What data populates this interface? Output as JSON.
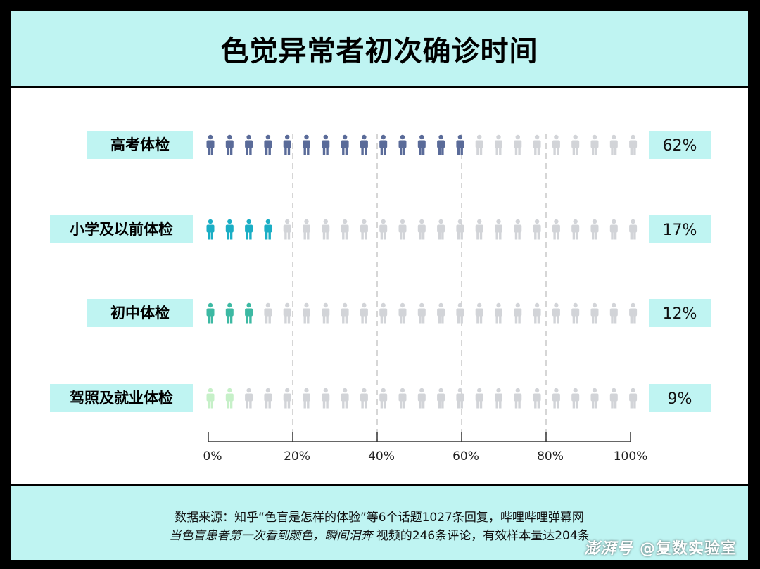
{
  "title": "色觉异常者初次确诊时间",
  "chart_data": {
    "type": "bar",
    "title": "色觉异常者初次确诊时间",
    "categories": [
      "高考体检",
      "小学及以前体检",
      "初中体检",
      "驾照及就业体检"
    ],
    "values": [
      62,
      17,
      12,
      9
    ],
    "value_labels": [
      "62%",
      "17%",
      "12%",
      "9%"
    ],
    "colors": [
      "#5a6b99",
      "#1aaec5",
      "#3db9a3",
      "#c6f0c8"
    ],
    "inactive_color": "#d2d4d8",
    "icons_per_row": 23,
    "x_ticks": [
      "0%",
      "20%",
      "40%",
      "60%",
      "80%",
      "100%"
    ],
    "xlim": [
      0,
      100
    ],
    "grid": "dashed-vertical"
  },
  "source": {
    "line1": "数据来源：知乎“色盲是怎样的体验”等6个话题1027条回复，哔哩哔哩弹幕网",
    "line2_em": "当色盲患者第一次看到颜色，瞬间泪奔",
    "line2_rest": " 视频的246条评论，有效样本量达204条"
  },
  "watermark": {
    "brand": "澎湃号",
    "account": "@复数实验室"
  },
  "label_bg": "#bff4f2"
}
